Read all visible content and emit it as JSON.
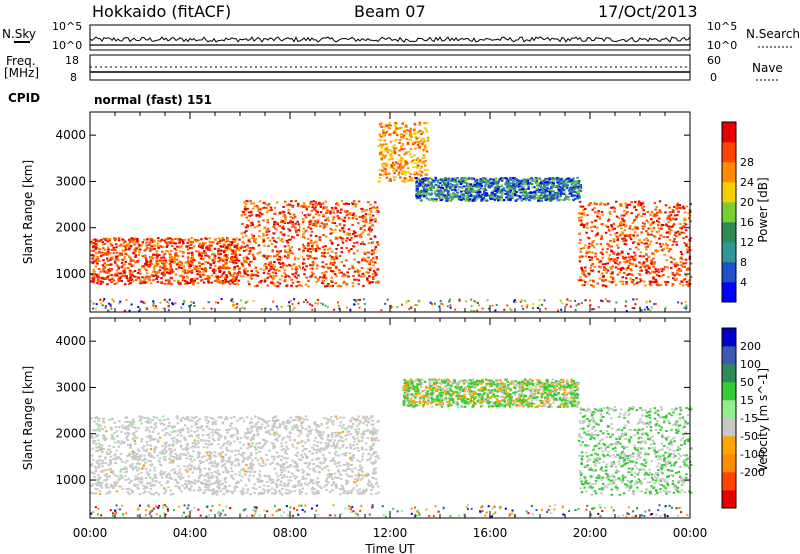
{
  "header": {
    "station": "Hokkaido (fitACF)",
    "beam": "Beam 07",
    "date": "17/Oct/2013"
  },
  "noise_panel": {
    "left_label": "N.Sky",
    "right_label": "N.Search",
    "tick_top": "10^5",
    "tick_bottom": "10^0"
  },
  "freq_panel": {
    "left_label_1": "Freq.",
    "left_label_2": "[MHz]",
    "tick_top": "18",
    "tick_bottom": "8",
    "right_label": "Nave",
    "right_tick_top": "60",
    "right_tick_bottom": "0"
  },
  "cpid_panel": {
    "label": "CPID",
    "value": "normal (fast) 151"
  },
  "chart_data": [
    {
      "type": "heatmap",
      "name": "power",
      "ylabel": "Slant Range [km]",
      "xlabel": "Time UT",
      "x_ticks": [
        "00:00",
        "04:00",
        "08:00",
        "12:00",
        "16:00",
        "20:00",
        "00:00"
      ],
      "y_ticks": [
        1000,
        2000,
        3000,
        4000
      ],
      "ylim": [
        180,
        4500
      ],
      "colorbar": {
        "label": "Power [dB]",
        "ticks": [
          4,
          8,
          12,
          16,
          20,
          24,
          28
        ],
        "colors": [
          "#0000ff",
          "#1e50c8",
          "#329696",
          "#2e8b57",
          "#7ccd32",
          "#f5d000",
          "#ff8c00",
          "#ff4500",
          "#e60000"
        ]
      },
      "regions": [
        {
          "t0": 0.0,
          "t1": 6.0,
          "r0": 800,
          "r1": 1800,
          "level": "orange-red"
        },
        {
          "t0": 6.0,
          "t1": 11.5,
          "r0": 750,
          "r1": 2600,
          "level": "red"
        },
        {
          "t0": 11.5,
          "t1": 13.5,
          "r0": 3000,
          "r1": 4300,
          "level": "orange"
        },
        {
          "t0": 13.0,
          "t1": 19.6,
          "r0": 2600,
          "r1": 3100,
          "level": "blue-green"
        },
        {
          "t0": 19.5,
          "t1": 24.0,
          "r0": 750,
          "r1": 2600,
          "level": "red"
        }
      ]
    },
    {
      "type": "heatmap",
      "name": "velocity",
      "ylabel": "Slant Range [km]",
      "xlabel": "Time UT",
      "x_ticks": [
        "00:00",
        "04:00",
        "08:00",
        "12:00",
        "16:00",
        "20:00",
        "00:00"
      ],
      "y_ticks": [
        1000,
        2000,
        3000,
        4000
      ],
      "ylim": [
        180,
        4500
      ],
      "colorbar": {
        "label": "Velocity [m s^-1]",
        "ticks": [
          200,
          100,
          50,
          15,
          -15,
          -50,
          -100,
          -200
        ],
        "colors": [
          "#0000c8",
          "#3c5ab4",
          "#2e8b57",
          "#32cd32",
          "#90ee90",
          "#c8c8c8",
          "#ffa500",
          "#ff8c00",
          "#ff4500",
          "#e60000"
        ]
      },
      "regions": [
        {
          "t0": 0.0,
          "t1": 11.5,
          "r0": 700,
          "r1": 2400,
          "level": "grey"
        },
        {
          "t0": 12.5,
          "t1": 19.5,
          "r0": 2600,
          "r1": 3200,
          "level": "green-orange"
        },
        {
          "t0": 19.5,
          "t1": 24.0,
          "r0": 700,
          "r1": 2600,
          "level": "green-grey"
        }
      ]
    }
  ]
}
